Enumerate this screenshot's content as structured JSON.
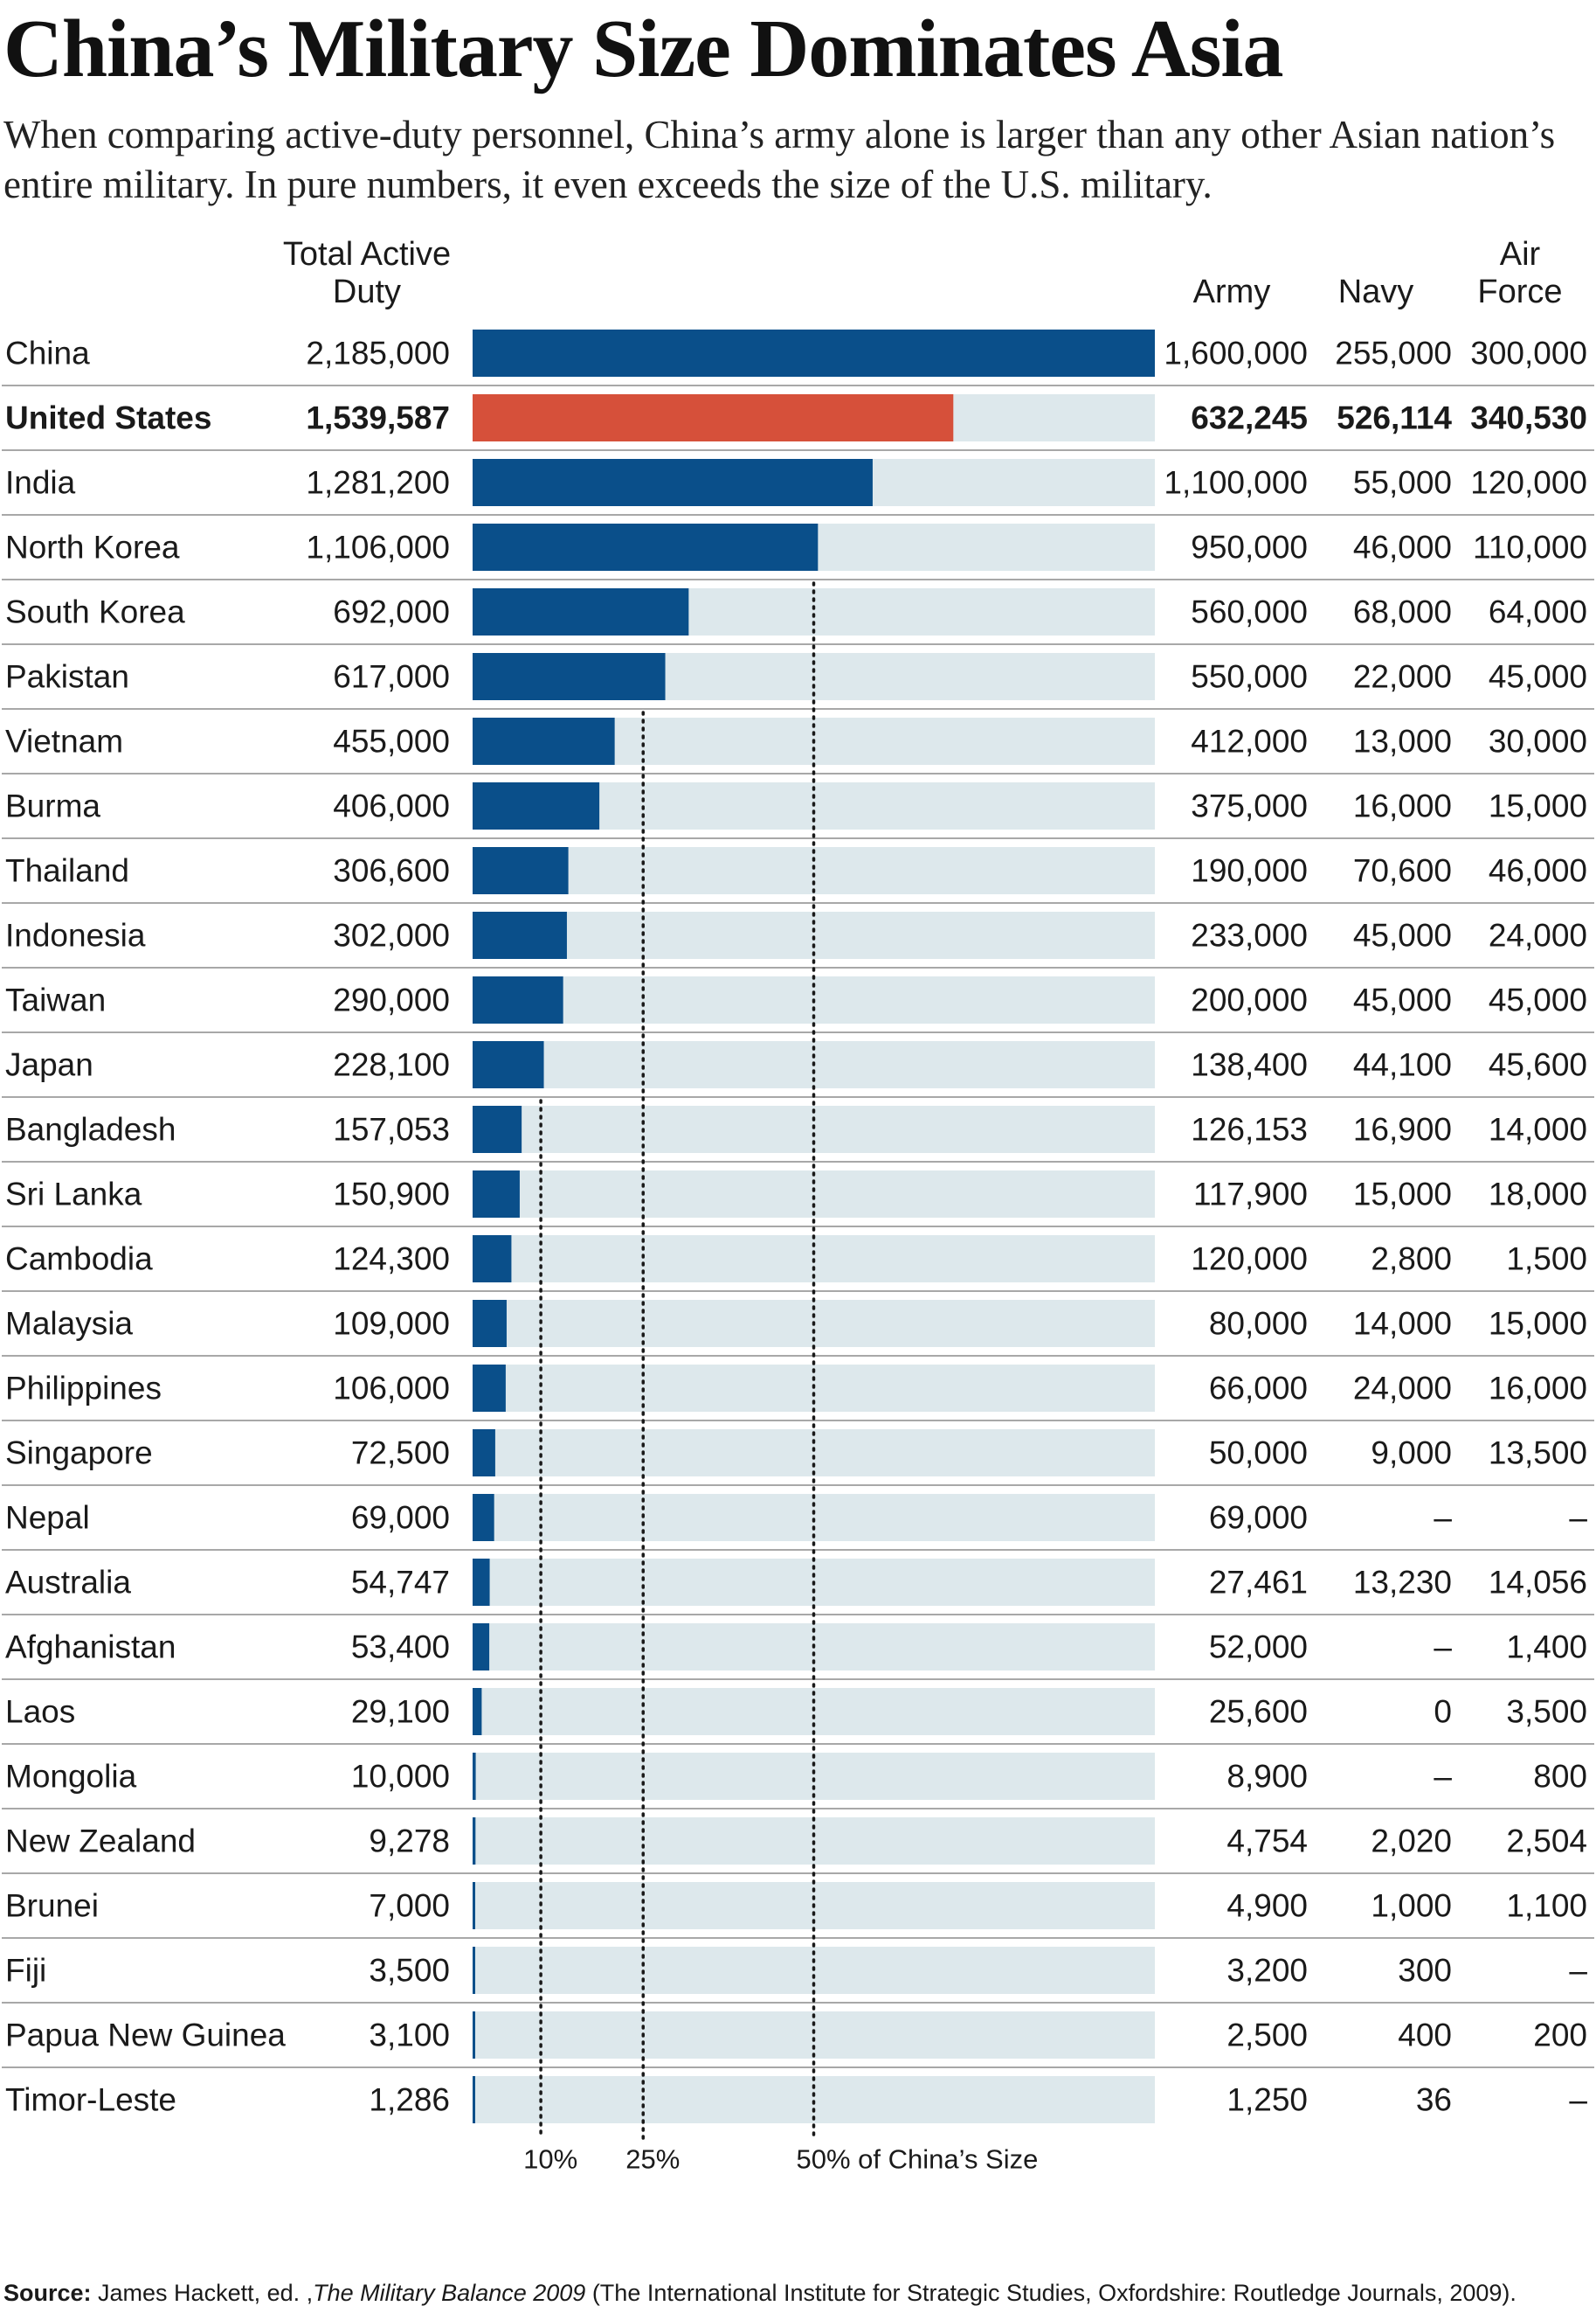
{
  "title": "China’s Military Size Dominates Asia",
  "subtitle": "When comparing active-duty personnel, China’s army alone is larger than any other Asian nation’s entire military. In pure numbers, it even exceeds the size of the U.S. military.",
  "headers": {
    "total": [
      "Total Active",
      "Duty"
    ],
    "army": "Army",
    "navy": "Navy",
    "air": [
      "Air",
      "Force"
    ]
  },
  "source": {
    "label": "Source:",
    "text1": " James Hackett, ed. ,",
    "book": "The Military Balance 2009",
    "text2": " (The International Institute for Strategic Studies, Oxfordshire: Routledge Journals, 2009)."
  },
  "colors": {
    "bar": "#0a4f8a",
    "highlight": "#d6503a",
    "track": "#dde8ec",
    "separator": "#a8a8a8"
  },
  "chart_data": {
    "type": "bar",
    "orientation": "horizontal",
    "max_value": 2185000,
    "highlight": "United States",
    "reference_lines": [
      {
        "fraction": 0.1,
        "label": "10%"
      },
      {
        "fraction": 0.25,
        "label": "25%"
      },
      {
        "fraction": 0.5,
        "label": "50% of China’s Size"
      }
    ],
    "rows": [
      {
        "country": "China",
        "total": 2185000,
        "total_label": "2,185,000",
        "army": "1,600,000",
        "navy": "255,000",
        "air": "300,000"
      },
      {
        "country": "United States",
        "total": 1539587,
        "total_label": "1,539,587",
        "army": "632,245",
        "navy": "526,114",
        "air": "340,530"
      },
      {
        "country": "India",
        "total": 1281200,
        "total_label": "1,281,200",
        "army": "1,100,000",
        "navy": "55,000",
        "air": "120,000"
      },
      {
        "country": "North Korea",
        "total": 1106000,
        "total_label": "1,106,000",
        "army": "950,000",
        "navy": "46,000",
        "air": "110,000"
      },
      {
        "country": "South Korea",
        "total": 692000,
        "total_label": "692,000",
        "army": "560,000",
        "navy": "68,000",
        "air": "64,000"
      },
      {
        "country": "Pakistan",
        "total": 617000,
        "total_label": "617,000",
        "army": "550,000",
        "navy": "22,000",
        "air": "45,000"
      },
      {
        "country": "Vietnam",
        "total": 455000,
        "total_label": "455,000",
        "army": "412,000",
        "navy": "13,000",
        "air": "30,000"
      },
      {
        "country": "Burma",
        "total": 406000,
        "total_label": "406,000",
        "army": "375,000",
        "navy": "16,000",
        "air": "15,000"
      },
      {
        "country": "Thailand",
        "total": 306600,
        "total_label": "306,600",
        "army": "190,000",
        "navy": "70,600",
        "air": "46,000"
      },
      {
        "country": "Indonesia",
        "total": 302000,
        "total_label": "302,000",
        "army": "233,000",
        "navy": "45,000",
        "air": "24,000"
      },
      {
        "country": "Taiwan",
        "total": 290000,
        "total_label": "290,000",
        "army": "200,000",
        "navy": "45,000",
        "air": "45,000"
      },
      {
        "country": "Japan",
        "total": 228100,
        "total_label": "228,100",
        "army": "138,400",
        "navy": "44,100",
        "air": "45,600"
      },
      {
        "country": "Bangladesh",
        "total": 157053,
        "total_label": "157,053",
        "army": "126,153",
        "navy": "16,900",
        "air": "14,000"
      },
      {
        "country": "Sri Lanka",
        "total": 150900,
        "total_label": "150,900",
        "army": "117,900",
        "navy": "15,000",
        "air": "18,000"
      },
      {
        "country": "Cambodia",
        "total": 124300,
        "total_label": "124,300",
        "army": "120,000",
        "navy": "2,800",
        "air": "1,500"
      },
      {
        "country": "Malaysia",
        "total": 109000,
        "total_label": "109,000",
        "army": "80,000",
        "navy": "14,000",
        "air": "15,000"
      },
      {
        "country": "Philippines",
        "total": 106000,
        "total_label": "106,000",
        "army": "66,000",
        "navy": "24,000",
        "air": "16,000"
      },
      {
        "country": "Singapore",
        "total": 72500,
        "total_label": "72,500",
        "army": "50,000",
        "navy": "9,000",
        "air": "13,500"
      },
      {
        "country": "Nepal",
        "total": 69000,
        "total_label": "69,000",
        "army": "69,000",
        "navy": "–",
        "air": "–"
      },
      {
        "country": "Australia",
        "total": 54747,
        "total_label": "54,747",
        "army": "27,461",
        "navy": "13,230",
        "air": "14,056"
      },
      {
        "country": "Afghanistan",
        "total": 53400,
        "total_label": "53,400",
        "army": "52,000",
        "navy": "–",
        "air": "1,400"
      },
      {
        "country": "Laos",
        "total": 29100,
        "total_label": "29,100",
        "army": "25,600",
        "navy": "0",
        "air": "3,500"
      },
      {
        "country": "Mongolia",
        "total": 10000,
        "total_label": "10,000",
        "army": "8,900",
        "navy": "–",
        "air": "800"
      },
      {
        "country": "New Zealand",
        "total": 9278,
        "total_label": "9,278",
        "army": "4,754",
        "navy": "2,020",
        "air": "2,504"
      },
      {
        "country": "Brunei",
        "total": 7000,
        "total_label": "7,000",
        "army": "4,900",
        "navy": "1,000",
        "air": "1,100"
      },
      {
        "country": "Fiji",
        "total": 3500,
        "total_label": "3,500",
        "army": "3,200",
        "navy": "300",
        "air": "–"
      },
      {
        "country": "Papua New Guinea",
        "total": 3100,
        "total_label": "3,100",
        "army": "2,500",
        "navy": "400",
        "air": "200"
      },
      {
        "country": "Timor-Leste",
        "total": 1286,
        "total_label": "1,286",
        "army": "1,250",
        "navy": "36",
        "air": "–"
      }
    ]
  }
}
